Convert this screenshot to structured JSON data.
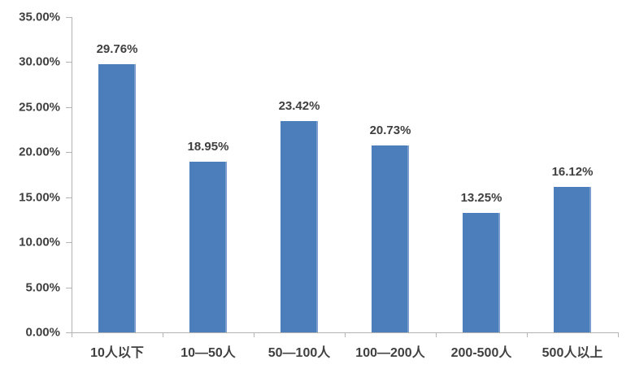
{
  "chart_data": {
    "type": "bar",
    "title": "",
    "xlabel": "",
    "ylabel": "",
    "grid": false,
    "legend": null,
    "categories": [
      "10人以下",
      "10—50人",
      "50—100人",
      "100—200人",
      "200-500人",
      "500人以上"
    ],
    "values": [
      29.76,
      18.95,
      23.42,
      20.73,
      13.25,
      16.12
    ],
    "value_labels": [
      "29.76%",
      "18.95%",
      "23.42%",
      "20.73%",
      "13.25%",
      "16.12%"
    ],
    "y_axis": {
      "min": 0,
      "max": 35,
      "step": 5,
      "tick_labels": [
        "0.00%",
        "5.00%",
        "10.00%",
        "15.00%",
        "20.00%",
        "25.00%",
        "30.00%",
        "35.00%"
      ]
    },
    "colors": {
      "bar": "#4d7ebc",
      "axis": "#b3b3b3",
      "text": "#404040",
      "background": "#ffffff"
    }
  }
}
